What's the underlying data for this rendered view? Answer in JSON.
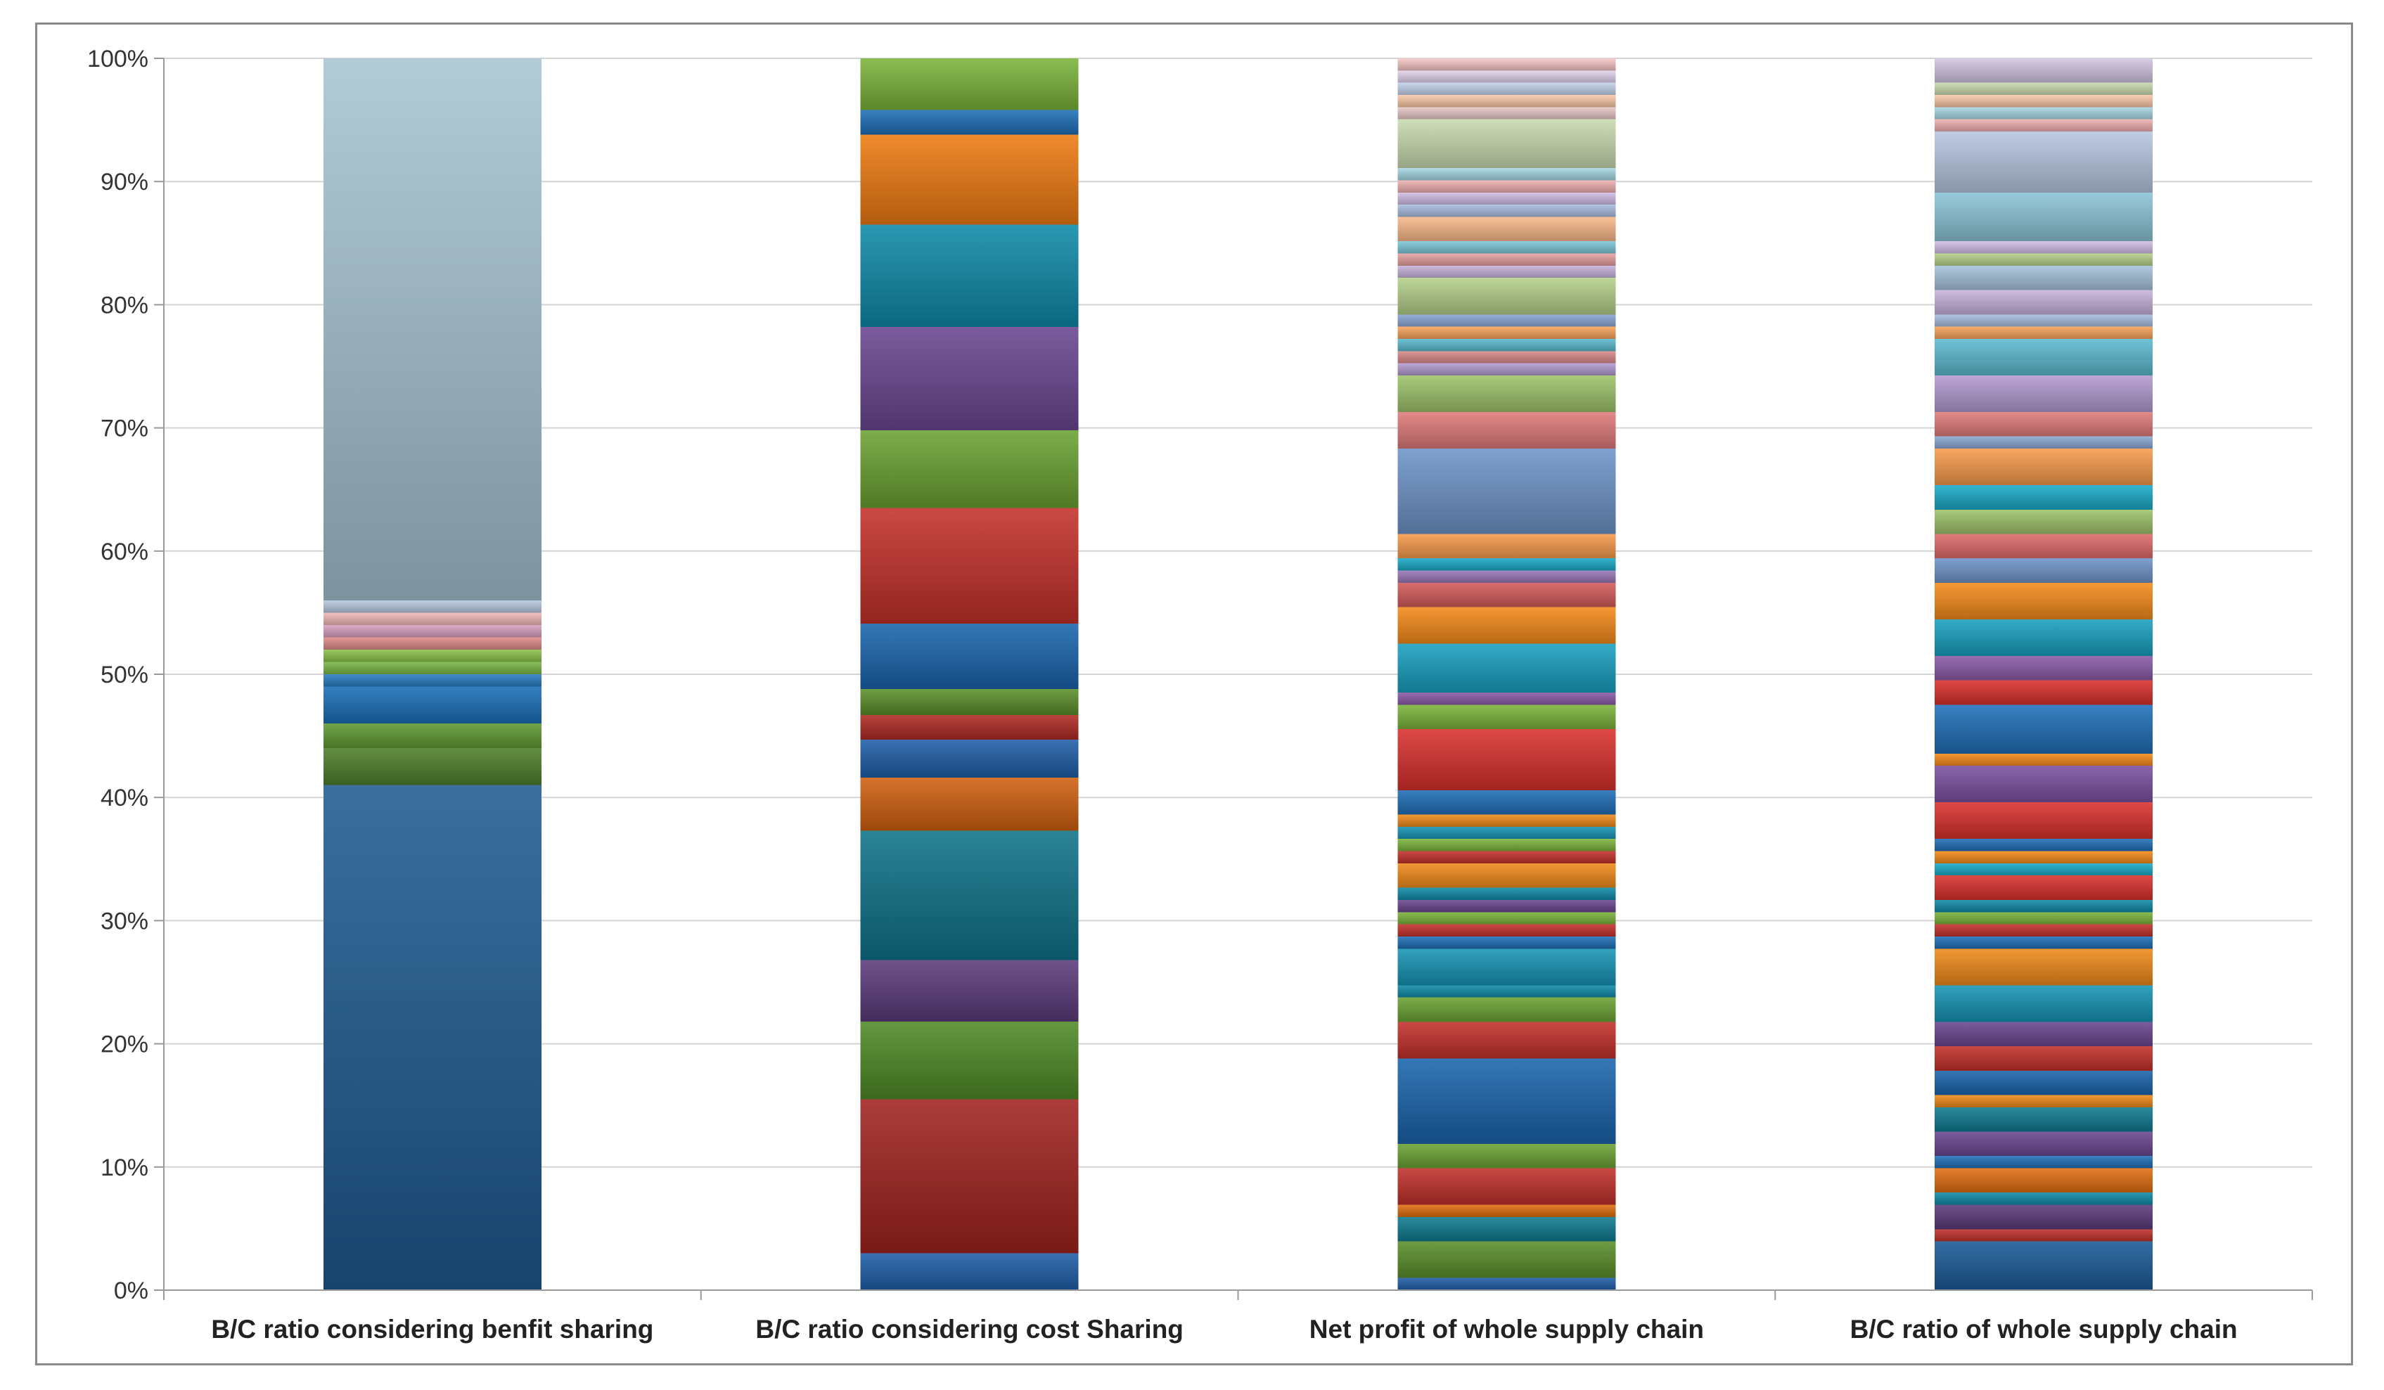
{
  "chart_data": {
    "type": "bar",
    "stacked": true,
    "normalized": true,
    "title": "",
    "xlabel": "",
    "ylabel": "",
    "ylim": [
      0,
      100
    ],
    "yticks": [
      0,
      10,
      20,
      30,
      40,
      50,
      60,
      70,
      80,
      90,
      100
    ],
    "ytick_suffix": "%",
    "grid": true,
    "legend": "none",
    "categories": [
      "B/C ratio considering benfit sharing",
      "B/C ratio considering cost Sharing",
      "Net profit of whole supply chain",
      "B/C ratio of whole supply chain"
    ],
    "stacks": [
      {
        "category": "B/C ratio considering benfit sharing",
        "segments": [
          {
            "value": 41,
            "color": "#1f5b91"
          },
          {
            "value": 3,
            "color": "#4f7f2a"
          },
          {
            "value": 2,
            "color": "#5f9a33"
          },
          {
            "value": 3,
            "color": "#1a6fb8"
          },
          {
            "value": 1,
            "color": "#2a7dc4"
          },
          {
            "value": 1,
            "color": "#7ab648"
          },
          {
            "value": 1,
            "color": "#8bc34a"
          },
          {
            "value": 1,
            "color": "#e08a8a"
          },
          {
            "value": 1,
            "color": "#d9a0c0"
          },
          {
            "value": 1,
            "color": "#f2b8b8"
          },
          {
            "value": 1,
            "color": "#b9c9e0"
          },
          {
            "value": 44,
            "color": "#a7c4d2"
          }
        ]
      },
      {
        "category": "B/C ratio considering cost Sharing",
        "segments": [
          {
            "value": 3,
            "color": "#1f5ea8"
          },
          {
            "value": 12.5,
            "color": "#a0221f"
          },
          {
            "value": 6.3,
            "color": "#4f8a26"
          },
          {
            "value": 5,
            "color": "#5b3a7a"
          },
          {
            "value": 10.5,
            "color": "#0e7388"
          },
          {
            "value": 4.3,
            "color": "#d06010"
          },
          {
            "value": 3.1,
            "color": "#1f5ea8"
          },
          {
            "value": 2,
            "color": "#b02a25"
          },
          {
            "value": 2.1,
            "color": "#5a8f2a"
          },
          {
            "value": 5.3,
            "color": "#1a64ad"
          },
          {
            "value": 9.4,
            "color": "#c4302b"
          },
          {
            "value": 6.3,
            "color": "#6aa233"
          },
          {
            "value": 8.4,
            "color": "#6a4690"
          },
          {
            "value": 8.3,
            "color": "#0f8aa8"
          },
          {
            "value": 7.3,
            "color": "#ee7a12"
          },
          {
            "value": 2,
            "color": "#1f6fb8"
          },
          {
            "value": 4.2,
            "color": "#7bb43a"
          }
        ]
      },
      {
        "category": "Net profit of whole supply chain",
        "segments": [
          {
            "value": 1,
            "color": "#1f5ea8"
          },
          {
            "value": 3,
            "color": "#5a8f2a"
          },
          {
            "value": 2,
            "color": "#0e7b90"
          },
          {
            "value": 1,
            "color": "#e06e10"
          },
          {
            "value": 3,
            "color": "#c0302b"
          },
          {
            "value": 2,
            "color": "#6aa233"
          },
          {
            "value": 7,
            "color": "#1a64ad"
          },
          {
            "value": 3,
            "color": "#c4302b"
          },
          {
            "value": 2,
            "color": "#6aa233"
          },
          {
            "value": 1,
            "color": "#0f8aa8"
          },
          {
            "value": 3,
            "color": "#1794b5"
          },
          {
            "value": 1,
            "color": "#1f6fb8"
          },
          {
            "value": 1,
            "color": "#c4302b"
          },
          {
            "value": 1,
            "color": "#7bb43a"
          },
          {
            "value": 1,
            "color": "#6a4690"
          },
          {
            "value": 1,
            "color": "#0f8aa8"
          },
          {
            "value": 2,
            "color": "#f08a1a"
          },
          {
            "value": 1,
            "color": "#c4302b"
          },
          {
            "value": 1,
            "color": "#7bb43a"
          },
          {
            "value": 1,
            "color": "#1794b5"
          },
          {
            "value": 1,
            "color": "#f08a1a"
          },
          {
            "value": 2,
            "color": "#1f6fb8"
          },
          {
            "value": 5,
            "color": "#d9302d"
          },
          {
            "value": 2,
            "color": "#7bb43a"
          },
          {
            "value": 1,
            "color": "#8a5aa8"
          },
          {
            "value": 4,
            "color": "#18a0c0"
          },
          {
            "value": 3,
            "color": "#f58a1a"
          },
          {
            "value": 2,
            "color": "#d45a5a"
          },
          {
            "value": 1,
            "color": "#9a78b8"
          },
          {
            "value": 1,
            "color": "#1aaac8"
          },
          {
            "value": 2,
            "color": "#f79a4a"
          },
          {
            "value": 7,
            "color": "#6e94c8"
          },
          {
            "value": 3,
            "color": "#e07a7a"
          },
          {
            "value": 3,
            "color": "#9ec36a"
          },
          {
            "value": 1,
            "color": "#b39ad0"
          },
          {
            "value": 1,
            "color": "#d98a8a"
          },
          {
            "value": 1,
            "color": "#5cbad0"
          },
          {
            "value": 1,
            "color": "#f7a35a"
          },
          {
            "value": 1,
            "color": "#8aa7d4"
          },
          {
            "value": 3,
            "color": "#b5d08a"
          },
          {
            "value": 1,
            "color": "#c7b3dc"
          },
          {
            "value": 1,
            "color": "#e6a1a1"
          },
          {
            "value": 1,
            "color": "#7dc7d9"
          },
          {
            "value": 2,
            "color": "#f9b98a"
          },
          {
            "value": 1,
            "color": "#a9bde0"
          },
          {
            "value": 1,
            "color": "#d3bde6"
          },
          {
            "value": 1,
            "color": "#f0b0b0"
          },
          {
            "value": 1,
            "color": "#a6d7e3"
          },
          {
            "value": 4,
            "color": "#c9dbb0"
          },
          {
            "value": 1,
            "color": "#e8c8c8"
          },
          {
            "value": 1,
            "color": "#f9c9a8"
          },
          {
            "value": 1,
            "color": "#c4d2ea"
          },
          {
            "value": 1,
            "color": "#e2d4ee"
          },
          {
            "value": 1,
            "color": "#f6c6c6"
          }
        ]
      },
      {
        "category": "B/C ratio of whole supply chain",
        "segments": [
          {
            "value": 4,
            "color": "#1a5a96"
          },
          {
            "value": 1,
            "color": "#c0302b"
          },
          {
            "value": 2,
            "color": "#5b3a7a"
          },
          {
            "value": 1,
            "color": "#0f8aa8"
          },
          {
            "value": 2,
            "color": "#e06e10"
          },
          {
            "value": 1,
            "color": "#1f6fb8"
          },
          {
            "value": 2,
            "color": "#6a4690"
          },
          {
            "value": 2,
            "color": "#0e7b90"
          },
          {
            "value": 1,
            "color": "#f08a1a"
          },
          {
            "value": 2,
            "color": "#1a64ad"
          },
          {
            "value": 2,
            "color": "#c4302b"
          },
          {
            "value": 2,
            "color": "#6a4690"
          },
          {
            "value": 3,
            "color": "#1794b5"
          },
          {
            "value": 3,
            "color": "#f08a1a"
          },
          {
            "value": 1,
            "color": "#1f6fb8"
          },
          {
            "value": 1,
            "color": "#c4302b"
          },
          {
            "value": 1,
            "color": "#7bb43a"
          },
          {
            "value": 1,
            "color": "#0f8aa8"
          },
          {
            "value": 2,
            "color": "#d9302d"
          },
          {
            "value": 1,
            "color": "#1aaac8"
          },
          {
            "value": 1,
            "color": "#f58a1a"
          },
          {
            "value": 1,
            "color": "#1f6fb8"
          },
          {
            "value": 3,
            "color": "#d9302d"
          },
          {
            "value": 3,
            "color": "#7a50a0"
          },
          {
            "value": 1,
            "color": "#f58a1a"
          },
          {
            "value": 4,
            "color": "#1f6fb8"
          },
          {
            "value": 2,
            "color": "#d9302d"
          },
          {
            "value": 2,
            "color": "#8a5aa8"
          },
          {
            "value": 3,
            "color": "#18a0c0"
          },
          {
            "value": 3,
            "color": "#f58a1a"
          },
          {
            "value": 2,
            "color": "#6e94c8"
          },
          {
            "value": 2,
            "color": "#e06a6a"
          },
          {
            "value": 2,
            "color": "#9ec36a"
          },
          {
            "value": 2,
            "color": "#1aaac8"
          },
          {
            "value": 3,
            "color": "#f79a4a"
          },
          {
            "value": 1,
            "color": "#8aa7d4"
          },
          {
            "value": 2,
            "color": "#e07a7a"
          },
          {
            "value": 3,
            "color": "#b39ad0"
          },
          {
            "value": 3,
            "color": "#5cbad0"
          },
          {
            "value": 1,
            "color": "#f7a35a"
          },
          {
            "value": 1,
            "color": "#a9bde0"
          },
          {
            "value": 2,
            "color": "#c7b3dc"
          },
          {
            "value": 2,
            "color": "#a6c2dc"
          },
          {
            "value": 1,
            "color": "#b5d08a"
          },
          {
            "value": 1,
            "color": "#d3bde6"
          },
          {
            "value": 4,
            "color": "#8cc4d6"
          },
          {
            "value": 5,
            "color": "#b6c6e0"
          },
          {
            "value": 1,
            "color": "#f0b0b0"
          },
          {
            "value": 1,
            "color": "#a6d7e3"
          },
          {
            "value": 1,
            "color": "#f9c9a8"
          },
          {
            "value": 1,
            "color": "#c9dbb0"
          },
          {
            "value": 2,
            "color": "#d3c6e2"
          }
        ]
      }
    ]
  }
}
